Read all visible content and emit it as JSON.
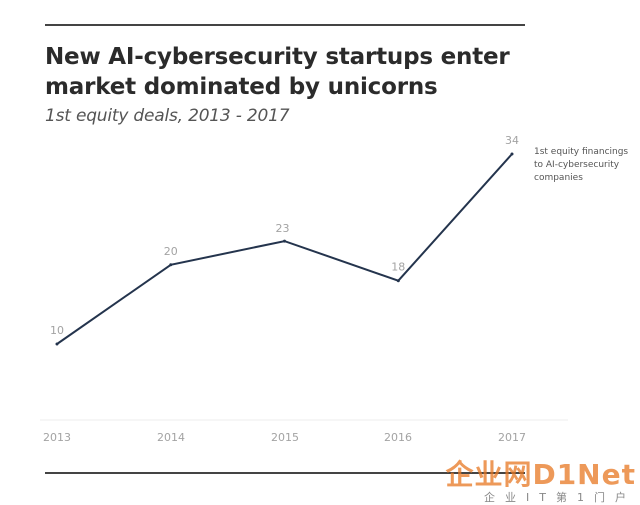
{
  "chart_data": {
    "type": "line",
    "title": "New AI-cybersecurity startups enter market dominated by unicorns",
    "subtitle": "1st equity deals, 2013 - 2017",
    "x": [
      "2013",
      "2014",
      "2015",
      "2016",
      "2017"
    ],
    "series": [
      {
        "name": "1st equity financings to AI-cybersecurity companies",
        "values": [
          10,
          20,
          23,
          18,
          34
        ],
        "color": "#24344d"
      }
    ],
    "xlabel": "",
    "ylabel": "",
    "ylim": [
      0,
      36
    ],
    "grid": false,
    "data_labels": true,
    "series_label_placement": "right-end"
  },
  "series_label_lines": [
    "1st equity financings",
    "to  AI-cybersecurity",
    "companies"
  ],
  "watermark": {
    "main": "企业网D1Net",
    "sub": "企业IT第1门户"
  }
}
